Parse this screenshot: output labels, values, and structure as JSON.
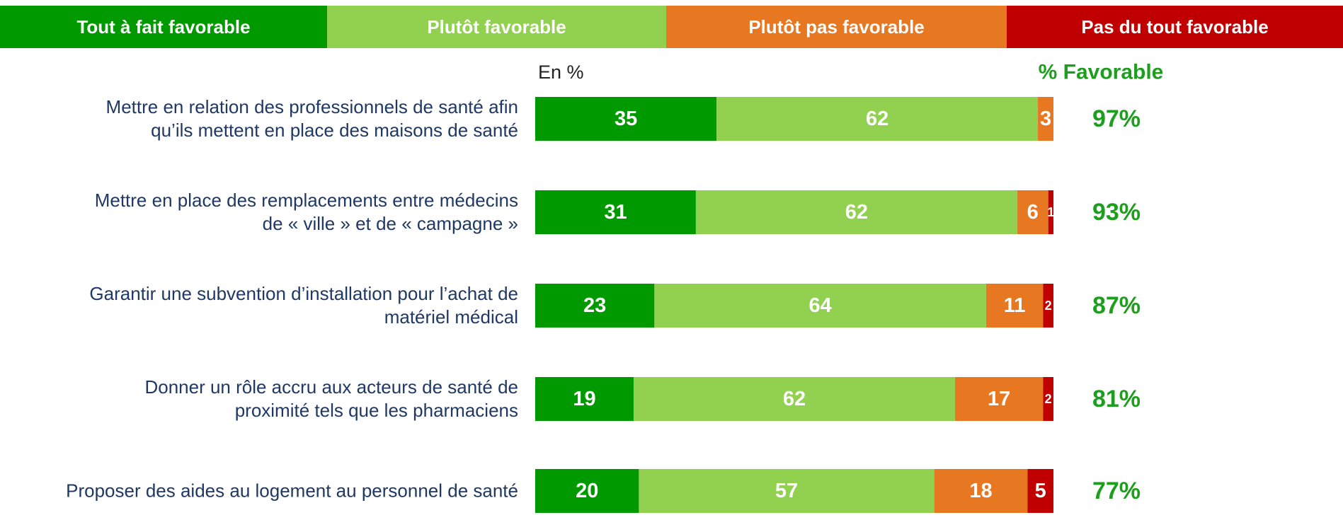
{
  "chart_data": {
    "type": "stacked-barh",
    "subtitle": "En %",
    "categories": [
      "Mettre en relation des professionnels de santé afin\nqu’ils mettent en place des maisons de santé",
      "Mettre en place des remplacements entre médecins\nde « ville » et de « campagne »",
      "Garantir une subvention d’installation pour l’achat de\nmatériel médical",
      "Donner un rôle accru aux acteurs de santé de\nproximité tels que les pharmaciens",
      "Proposer des aides au logement au personnel de santé"
    ],
    "series": [
      {
        "name": "Tout à fait favorable",
        "color": "#009a00",
        "values": [
          35,
          31,
          23,
          19,
          20
        ]
      },
      {
        "name": "Plutôt favorable",
        "color": "#92d050",
        "values": [
          62,
          62,
          64,
          62,
          57
        ]
      },
      {
        "name": "Plutôt pas favorable",
        "color": "#e87722",
        "values": [
          3,
          6,
          11,
          17,
          18
        ]
      },
      {
        "name": "Pas du tout favorable",
        "color": "#c00000",
        "values": [
          0,
          1,
          2,
          2,
          5
        ]
      }
    ],
    "favorable": {
      "title": "% Favorable",
      "color": "#1e9e1e",
      "values": [
        97,
        93,
        87,
        81,
        77
      ],
      "value_labels": [
        "97%",
        "93%",
        "87%",
        "81%",
        "77%"
      ]
    },
    "xlim": [
      0,
      100
    ]
  }
}
